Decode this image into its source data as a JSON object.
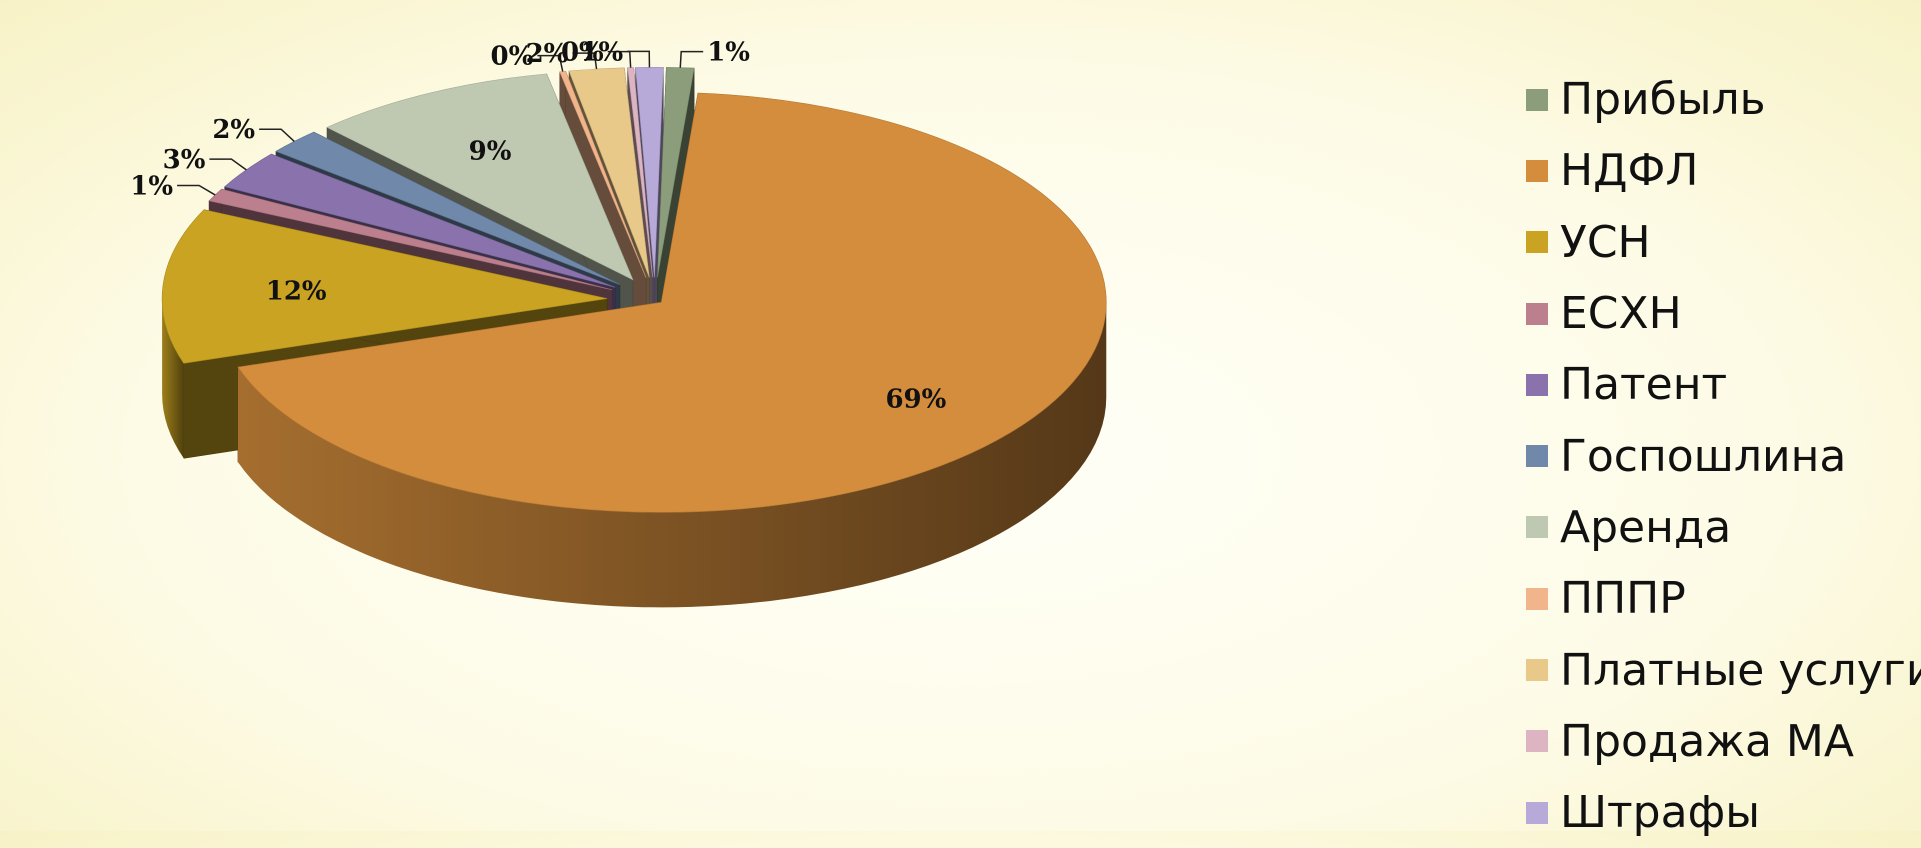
{
  "chart_data": {
    "type": "pie",
    "style": "3d-exploded",
    "legend_position": "right",
    "slices": [
      {
        "name": "Прибыль",
        "value": 1,
        "label": "1%",
        "color": "#8b9d7b"
      },
      {
        "name": "НДФЛ",
        "value": 69,
        "label": "69%",
        "color": "#d48d3c"
      },
      {
        "name": "УСН",
        "value": 12,
        "label": "12%",
        "color": "#c9a321"
      },
      {
        "name": "ЕСХН",
        "value": 1,
        "label": "1%",
        "color": "#bc7f8d"
      },
      {
        "name": "Патент",
        "value": 3,
        "label": "3%",
        "color": "#8a73ad"
      },
      {
        "name": "Госпошлина",
        "value": 2,
        "label": "2%",
        "color": "#7089ab"
      },
      {
        "name": "Аренда",
        "value": 9,
        "label": "9%",
        "color": "#bfc9b2"
      },
      {
        "name": "ПППР",
        "value": 0,
        "label": "0%",
        "color": "#f2b48a"
      },
      {
        "name": "Платные услуги",
        "value": 2,
        "label": "2%",
        "color": "#e8c98a"
      },
      {
        "name": "Продажа МА",
        "value": 0,
        "label": "0%",
        "color": "#ddb4c2"
      },
      {
        "name": "Штрафы",
        "value": 1,
        "label": "1%",
        "color": "#b7a9d8"
      }
    ]
  }
}
